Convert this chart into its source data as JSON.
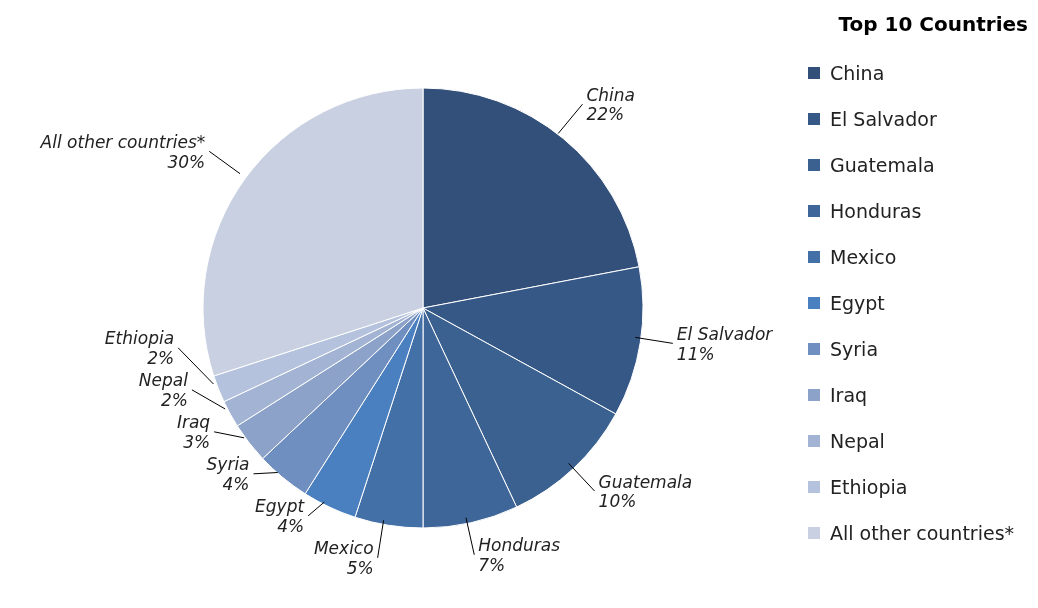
{
  "chart_data": {
    "type": "pie",
    "legend_title": "Top 10 Countries",
    "legend": "right",
    "value_labels": [
      "22%",
      "11%",
      "10%",
      "7%",
      "5%",
      "4%",
      "4%",
      "3%",
      "2%",
      "2%",
      "30%"
    ],
    "categories": [
      "China",
      "El Salvador",
      "Guatemala",
      "Honduras",
      "Mexico",
      "Egypt",
      "Syria",
      "Iraq",
      "Nepal",
      "Ethiopia",
      "All other countries*"
    ],
    "values": [
      22,
      11,
      10,
      7,
      5,
      4,
      4,
      3,
      2,
      2,
      30
    ],
    "colors": [
      "#33507a",
      "#365887",
      "#3b6190",
      "#3f6699",
      "#4470a8",
      "#4a80c0",
      "#6f8fc0",
      "#8ca2c9",
      "#a3b3d3",
      "#b5c2dd",
      "#c8d0e1"
    ]
  }
}
